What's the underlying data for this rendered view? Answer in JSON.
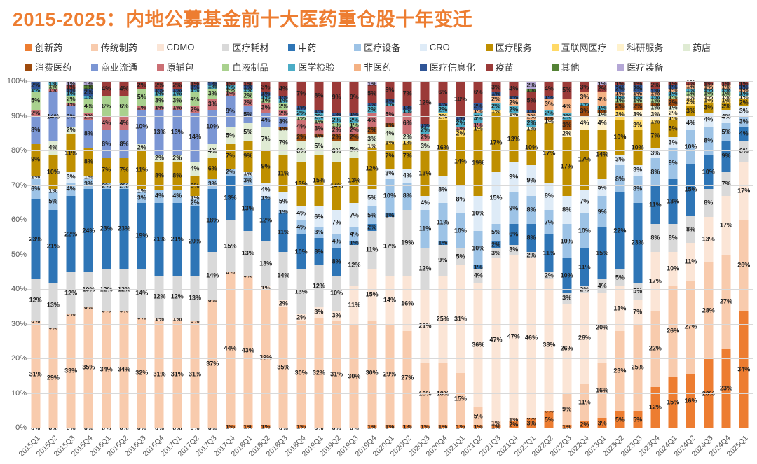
{
  "title": "2015-2025：内地公募基金前十大医药重仓股十年变迁",
  "chart_data": {
    "type": "bar",
    "subtype": "stacked-100-percent",
    "title": "2015-2025：内地公募基金前十大医药重仓股十年变迁",
    "xlabel": "",
    "ylabel": "",
    "ylim": [
      0,
      100
    ],
    "grid": "horizontal",
    "legend_position": "top",
    "y_ticks": [
      "0%",
      "10%",
      "20%",
      "30%",
      "40%",
      "50%",
      "60%",
      "70%",
      "80%",
      "90%",
      "100%"
    ],
    "categories": [
      "2015Q1",
      "2015Q2",
      "2015Q3",
      "2015Q4",
      "2016Q1",
      "2016Q2",
      "2016Q3",
      "2016Q4",
      "2017Q1",
      "2017Q2",
      "2017Q3",
      "2017Q4",
      "2018Q1",
      "2018Q2",
      "2018Q3",
      "2018Q4",
      "2019Q1",
      "2019Q2",
      "2019Q3",
      "2019Q4",
      "2020Q1",
      "2020Q2",
      "2020Q3",
      "2020Q4",
      "2021Q1",
      "2021Q2",
      "2021Q3",
      "2021Q4",
      "2022Q1",
      "2022Q2",
      "2022Q3",
      "2022Q4",
      "2023Q1",
      "2023Q2",
      "2023Q3",
      "2023Q4",
      "2024Q1",
      "2024Q2",
      "2024Q3",
      "2024Q4",
      "2025Q1"
    ],
    "series": [
      {
        "name": "创新药",
        "color": "#ED7D31",
        "values": [
          0,
          0,
          0,
          0,
          0,
          0,
          0,
          0,
          0,
          0,
          0,
          1,
          1,
          1,
          0,
          1,
          0,
          0,
          0,
          1,
          1,
          1,
          1,
          1,
          1,
          1,
          1,
          2,
          3,
          5,
          1,
          2,
          3,
          5,
          5,
          12,
          15,
          16,
          20,
          23,
          34
        ]
      },
      {
        "name": "传统制药",
        "color": "#F8CBAD",
        "values": [
          31,
          29,
          33,
          35,
          34,
          34,
          32,
          31,
          31,
          31,
          37,
          44,
          43,
          39,
          35,
          30,
          32,
          31,
          30,
          30,
          29,
          27,
          18,
          18,
          15,
          5,
          1,
          1,
          0,
          0,
          9,
          11,
          16,
          23,
          25,
          22,
          26,
          27,
          28,
          27,
          26
        ]
      },
      {
        "name": "CDMO",
        "color": "#FBE5D6",
        "values": [
          0,
          0,
          0,
          0,
          0,
          0,
          0,
          1,
          1,
          0,
          0,
          0,
          0,
          1,
          2,
          2,
          3,
          3,
          11,
          15,
          14,
          16,
          21,
          25,
          31,
          36,
          47,
          47,
          46,
          38,
          26,
          26,
          20,
          13,
          7,
          17,
          10,
          11,
          13,
          17,
          17
        ]
      },
      {
        "name": "医疗耗材",
        "color": "#D9D9D9",
        "values": [
          12,
          13,
          12,
          10,
          12,
          12,
          14,
          12,
          12,
          13,
          14,
          15,
          13,
          13,
          14,
          13,
          12,
          10,
          12,
          11,
          17,
          19,
          12,
          9,
          5,
          4,
          3,
          3,
          2,
          2,
          3,
          2,
          4,
          5,
          5,
          8,
          8,
          8,
          8,
          7,
          6
        ]
      },
      {
        "name": "中药",
        "color": "#2E75B6",
        "values": [
          23,
          21,
          22,
          24,
          23,
          23,
          19,
          21,
          21,
          20,
          18,
          13,
          13,
          12,
          11,
          10,
          8,
          8,
          1,
          2,
          1,
          0,
          0,
          1,
          0,
          1,
          2,
          6,
          8,
          11,
          10,
          11,
          15,
          22,
          23,
          11,
          13,
          15,
          10,
          9,
          4
        ]
      },
      {
        "name": "医疗设备",
        "color": "#9DC3E6",
        "values": [
          6,
          5,
          4,
          3,
          2,
          2,
          3,
          4,
          4,
          2,
          3,
          2,
          3,
          1,
          1,
          4,
          3,
          4,
          4,
          5,
          10,
          8,
          11,
          11,
          10,
          10,
          5,
          9,
          8,
          7,
          10,
          10,
          9,
          8,
          8,
          8,
          9,
          10,
          8,
          5,
          3
        ]
      },
      {
        "name": "CRO",
        "color": "#DEEBF7",
        "values": [
          1,
          1,
          3,
          1,
          0,
          0,
          1,
          0,
          0,
          1,
          0,
          0,
          1,
          4,
          5,
          4,
          6,
          7,
          7,
          5,
          3,
          4,
          4,
          8,
          8,
          10,
          15,
          9,
          9,
          8,
          8,
          7,
          5,
          3,
          3,
          3,
          3,
          4,
          4,
          4,
          3
        ]
      },
      {
        "name": "医疗服务",
        "color": "#BF8F00",
        "values": [
          9,
          10,
          11,
          8,
          7,
          7,
          11,
          8,
          8,
          6,
          6,
          7,
          9,
          9,
          11,
          13,
          15,
          14,
          13,
          12,
          7,
          7,
          13,
          16,
          14,
          19,
          17,
          13,
          10,
          17,
          17,
          17,
          14,
          10,
          10,
          7,
          5,
          3,
          3,
          2,
          2
        ]
      },
      {
        "name": "互联网医疗",
        "color": "#FFD966",
        "values": [
          0,
          0,
          0,
          0,
          0,
          0,
          0,
          0,
          0,
          0,
          0,
          0,
          0,
          0,
          0,
          0,
          0,
          0,
          0,
          0,
          1,
          1,
          0,
          2,
          2,
          1,
          1,
          0,
          0,
          0,
          0,
          0,
          0,
          3,
          3,
          1,
          1,
          2,
          1,
          1,
          0
        ]
      },
      {
        "name": "科研服务",
        "color": "#FFF2CC",
        "values": [
          0,
          0,
          0,
          0,
          0,
          0,
          0,
          0,
          0,
          0,
          0,
          0,
          0,
          0,
          0,
          0,
          0,
          0,
          0,
          1,
          0,
          0,
          0,
          0,
          0,
          0,
          0,
          1,
          1,
          1,
          2,
          4,
          4,
          0,
          3,
          3,
          2,
          1,
          1,
          1,
          1
        ]
      },
      {
        "name": "药店",
        "color": "#DFEBD3",
        "values": [
          0,
          4,
          2,
          0,
          0,
          0,
          2,
          2,
          2,
          4,
          4,
          5,
          5,
          7,
          7,
          6,
          5,
          6,
          5,
          3,
          4,
          2,
          3,
          0,
          0,
          0,
          0,
          0,
          0,
          0,
          0,
          0,
          1,
          0,
          0,
          1,
          1,
          0,
          0,
          0,
          0
        ]
      },
      {
        "name": "消费医药",
        "color": "#9E4A0C",
        "values": [
          0,
          0,
          0,
          0,
          0,
          0,
          0,
          0,
          0,
          0,
          0,
          0,
          0,
          0,
          1,
          2,
          1,
          2,
          2,
          2,
          1,
          0,
          0,
          0,
          0,
          0,
          0,
          0,
          0,
          1,
          3,
          3,
          1,
          2,
          2,
          1,
          2,
          0,
          0,
          0,
          0
        ]
      },
      {
        "name": "商业流通",
        "color": "#7B96D4",
        "values": [
          8,
          14,
          6,
          8,
          8,
          8,
          10,
          13,
          13,
          14,
          10,
          9,
          5,
          4,
          3,
          0,
          0,
          0,
          0,
          0,
          0,
          0,
          0,
          0,
          0,
          0,
          0,
          0,
          0,
          0,
          0,
          0,
          0,
          0,
          0,
          0,
          0,
          0,
          0,
          0,
          0
        ]
      },
      {
        "name": "原辅包",
        "color": "#CB6F74",
        "values": [
          2,
          1,
          1,
          2,
          4,
          4,
          1,
          1,
          1,
          2,
          3,
          1,
          2,
          3,
          2,
          4,
          3,
          2,
          2,
          4,
          5,
          6,
          2,
          0,
          1,
          1,
          0,
          0,
          0,
          0,
          0,
          0,
          0,
          0,
          0,
          0,
          0,
          0,
          0,
          0,
          0
        ]
      },
      {
        "name": "血液制品",
        "color": "#A9D18E",
        "values": [
          5,
          1,
          2,
          4,
          6,
          6,
          5,
          3,
          3,
          4,
          3,
          1,
          2,
          1,
          2,
          1,
          1,
          1,
          1,
          0,
          0,
          0,
          0,
          0,
          0,
          0,
          0,
          0,
          0,
          0,
          0,
          0,
          0,
          1,
          1,
          1,
          1,
          1,
          1,
          1,
          0
        ]
      },
      {
        "name": "医学检验",
        "color": "#4BACC6",
        "values": [
          1,
          1,
          1,
          1,
          0,
          0,
          0,
          1,
          1,
          1,
          1,
          1,
          1,
          1,
          1,
          2,
          2,
          2,
          2,
          2,
          1,
          1,
          2,
          2,
          2,
          3,
          2,
          2,
          2,
          2,
          2,
          1,
          1,
          1,
          1,
          1,
          1,
          1,
          1,
          1,
          1
        ]
      },
      {
        "name": "非医药",
        "color": "#F4B183",
        "values": [
          0,
          0,
          0,
          0,
          0,
          0,
          0,
          0,
          0,
          0,
          0,
          0,
          0,
          0,
          0,
          0,
          0,
          0,
          0,
          0,
          0,
          0,
          0,
          0,
          0,
          1,
          2,
          2,
          2,
          3,
          4,
          3,
          4,
          1,
          1,
          1,
          1,
          1,
          1,
          1,
          1
        ]
      },
      {
        "name": "医疗信息化",
        "color": "#2F5597",
        "values": [
          2,
          0,
          1,
          2,
          0,
          0,
          0,
          1,
          1,
          1,
          1,
          0,
          1,
          1,
          1,
          1,
          1,
          1,
          1,
          1,
          1,
          1,
          1,
          1,
          1,
          2,
          1,
          1,
          1,
          1,
          0,
          0,
          0,
          2,
          2,
          1,
          1,
          0,
          0,
          0,
          1
        ]
      },
      {
        "name": "疫苗",
        "color": "#9B3A38",
        "values": [
          0,
          0,
          1,
          0,
          4,
          4,
          2,
          2,
          2,
          1,
          0,
          1,
          1,
          3,
          4,
          7,
          8,
          9,
          9,
          5,
          5,
          7,
          12,
          6,
          10,
          6,
          3,
          4,
          5,
          4,
          5,
          3,
          2,
          1,
          1,
          2,
          1,
          1,
          1,
          1,
          1
        ]
      },
      {
        "name": "其他",
        "color": "#548235",
        "values": [
          0,
          0,
          0,
          1,
          0,
          0,
          0,
          0,
          0,
          0,
          0,
          0,
          0,
          0,
          0,
          0,
          0,
          0,
          0,
          0,
          0,
          0,
          0,
          0,
          0,
          0,
          0,
          0,
          1,
          0,
          0,
          0,
          0,
          0,
          0,
          0,
          0,
          0,
          0,
          0,
          0
        ]
      },
      {
        "name": "医疗装备",
        "color": "#B4A7D6",
        "values": [
          0,
          0,
          1,
          1,
          0,
          0,
          0,
          0,
          0,
          0,
          0,
          0,
          0,
          0,
          0,
          0,
          0,
          0,
          0,
          1,
          0,
          0,
          0,
          0,
          0,
          0,
          0,
          0,
          2,
          0,
          0,
          0,
          1,
          0,
          0,
          0,
          0,
          0,
          0,
          0,
          0
        ]
      }
    ]
  }
}
